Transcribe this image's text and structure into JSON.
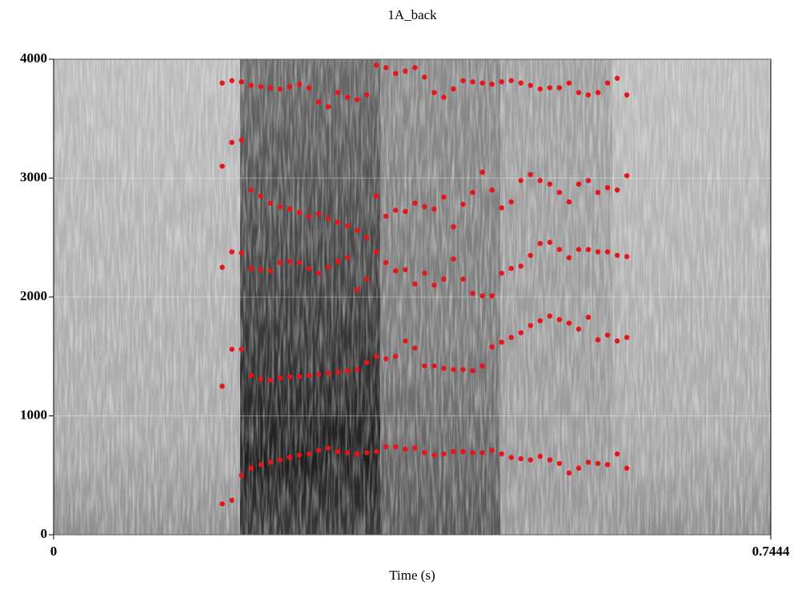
{
  "chart_data": {
    "type": "scatter",
    "title": "1A_back",
    "x_label": "Time (s)",
    "xlim": [
      0,
      0.7444
    ],
    "xticks": [
      0,
      0.7444
    ],
    "ylim": [
      0,
      4000
    ],
    "yticks": [
      0,
      1000,
      2000,
      3000,
      4000
    ],
    "grid": true,
    "x": [
      0.175,
      0.185,
      0.195,
      0.205,
      0.215,
      0.225,
      0.235,
      0.245,
      0.255,
      0.265,
      0.275,
      0.285,
      0.295,
      0.305,
      0.315,
      0.325,
      0.335,
      0.345,
      0.355,
      0.365,
      0.375,
      0.385,
      0.395,
      0.405,
      0.415,
      0.425,
      0.435,
      0.445,
      0.455,
      0.465,
      0.475,
      0.485,
      0.495,
      0.505,
      0.515,
      0.525,
      0.535,
      0.545,
      0.555,
      0.565,
      0.575,
      0.585,
      0.595
    ],
    "series": [
      {
        "color": "#e8141a",
        "values": [
          260,
          290,
          500,
          560,
          590,
          610,
          630,
          650,
          670,
          680,
          710,
          730,
          700,
          690,
          680,
          690,
          700,
          740,
          740,
          720,
          730,
          690,
          670,
          680,
          700,
          700,
          690,
          690,
          710,
          680,
          650,
          640,
          630,
          660,
          630,
          600,
          520,
          560,
          610,
          600,
          590,
          680,
          560
        ]
      },
      {
        "color": "#e8141a",
        "values": [
          1250,
          1560,
          1560,
          1340,
          1310,
          1300,
          1320,
          1330,
          1330,
          1340,
          1350,
          1360,
          1370,
          1380,
          1390,
          1450,
          1500,
          1480,
          1500,
          1630,
          1570,
          1420,
          1420,
          1400,
          1390,
          1390,
          1380,
          1420,
          1580,
          1620,
          1660,
          1700,
          1760,
          1800,
          1840,
          1810,
          1780,
          1730,
          1830,
          1640,
          1680,
          1630,
          1660
        ]
      },
      {
        "color": "#e8141a",
        "values": [
          2250,
          2380,
          2370,
          2240,
          2230,
          2220,
          2290,
          2300,
          2290,
          2240,
          2200,
          2250,
          2300,
          2330,
          2060,
          2150,
          2380,
          2290,
          2220,
          2230,
          2110,
          2200,
          2100,
          2150,
          2320,
          2150,
          2030,
          2010,
          2010,
          2200,
          2240,
          2260,
          2350,
          2450,
          2460,
          2400,
          2330,
          2400,
          2400,
          2380,
          2380,
          2350,
          2340
        ]
      },
      {
        "color": "#e8141a",
        "values": [
          3100,
          3300,
          3320,
          2900,
          2850,
          2790,
          2760,
          2740,
          2710,
          2680,
          2700,
          2660,
          2630,
          2600,
          2560,
          2500,
          2850,
          2680,
          2730,
          2720,
          2790,
          2760,
          2740,
          2840,
          2590,
          2780,
          2880,
          3050,
          2900,
          2750,
          2800,
          2980,
          3030,
          2980,
          2950,
          2880,
          2800,
          2950,
          2980,
          2880,
          2920,
          2900,
          3020
        ]
      },
      {
        "color": "#e8141a",
        "values": [
          3800,
          3820,
          3810,
          3780,
          3770,
          3760,
          3750,
          3770,
          3790,
          3760,
          3640,
          3600,
          3720,
          3680,
          3660,
          3700,
          3950,
          3930,
          3880,
          3900,
          3930,
          3850,
          3720,
          3680,
          3750,
          3820,
          3810,
          3800,
          3790,
          3810,
          3820,
          3800,
          3780,
          3750,
          3760,
          3760,
          3800,
          3720,
          3700,
          3720,
          3800,
          3840,
          3700
        ]
      }
    ]
  }
}
